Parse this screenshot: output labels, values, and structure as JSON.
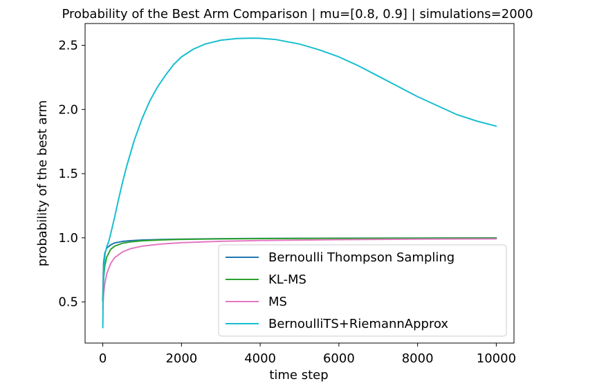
{
  "chart_data": {
    "type": "line",
    "title": "Probability of the Best Arm Comparison | mu=[0.8, 0.9] | simulations=2000",
    "xlabel": "time step",
    "ylabel": "probability of the best arm",
    "xlim": [
      -450,
      10450
    ],
    "ylim": [
      0.18,
      2.67
    ],
    "xticks": [
      0,
      2000,
      4000,
      6000,
      8000,
      10000
    ],
    "xtick_labels": [
      "0",
      "2000",
      "4000",
      "6000",
      "8000",
      "10000"
    ],
    "yticks": [
      0.5,
      1.0,
      1.5,
      2.0,
      2.5
    ],
    "ytick_labels": [
      "0.5",
      "1.0",
      "1.5",
      "2.0",
      "2.5"
    ],
    "grid": false,
    "legend_position": "lower-right",
    "series": [
      {
        "name": "Bernoulli Thompson Sampling",
        "color": "#1f77b4",
        "x": [
          0,
          20,
          50,
          100,
          200,
          300,
          500,
          700,
          1000,
          1500,
          2000,
          3000,
          4000,
          6000,
          8000,
          10000
        ],
        "y": [
          0.52,
          0.8,
          0.88,
          0.92,
          0.945,
          0.96,
          0.972,
          0.978,
          0.983,
          0.987,
          0.99,
          0.993,
          0.995,
          0.997,
          0.998,
          0.999
        ]
      },
      {
        "name": "KL-MS",
        "color": "#2ca02c",
        "x": [
          0,
          20,
          50,
          100,
          200,
          300,
          500,
          700,
          1000,
          1500,
          2000,
          3000,
          4000,
          6000,
          8000,
          10000
        ],
        "y": [
          0.5,
          0.68,
          0.78,
          0.85,
          0.91,
          0.935,
          0.958,
          0.968,
          0.977,
          0.984,
          0.988,
          0.992,
          0.994,
          0.996,
          0.997,
          0.998
        ]
      },
      {
        "name": "MS",
        "color": "#e377c2",
        "x": [
          0,
          20,
          50,
          100,
          200,
          300,
          500,
          700,
          1000,
          1500,
          2000,
          3000,
          4000,
          6000,
          8000,
          10000
        ],
        "y": [
          0.45,
          0.56,
          0.64,
          0.72,
          0.8,
          0.845,
          0.89,
          0.915,
          0.935,
          0.952,
          0.962,
          0.973,
          0.979,
          0.986,
          0.99,
          0.992
        ]
      },
      {
        "name": "BernoulliTS+RiemannApprox",
        "color": "#17becf",
        "x": [
          0,
          10,
          30,
          60,
          100,
          150,
          200,
          300,
          400,
          500,
          600,
          800,
          1000,
          1200,
          1400,
          1600,
          1800,
          2000,
          2300,
          2600,
          3000,
          3400,
          3800,
          4000,
          4400,
          5000,
          5500,
          6000,
          6500,
          7000,
          7500,
          8000,
          8500,
          9000,
          9500,
          10000
        ],
        "y": [
          0.3,
          0.55,
          0.78,
          0.88,
          0.93,
          0.97,
          1.03,
          1.16,
          1.3,
          1.43,
          1.55,
          1.76,
          1.93,
          2.07,
          2.18,
          2.27,
          2.35,
          2.41,
          2.47,
          2.51,
          2.54,
          2.553,
          2.556,
          2.555,
          2.545,
          2.51,
          2.465,
          2.41,
          2.34,
          2.26,
          2.18,
          2.1,
          2.03,
          1.96,
          1.91,
          1.87
        ]
      }
    ]
  }
}
